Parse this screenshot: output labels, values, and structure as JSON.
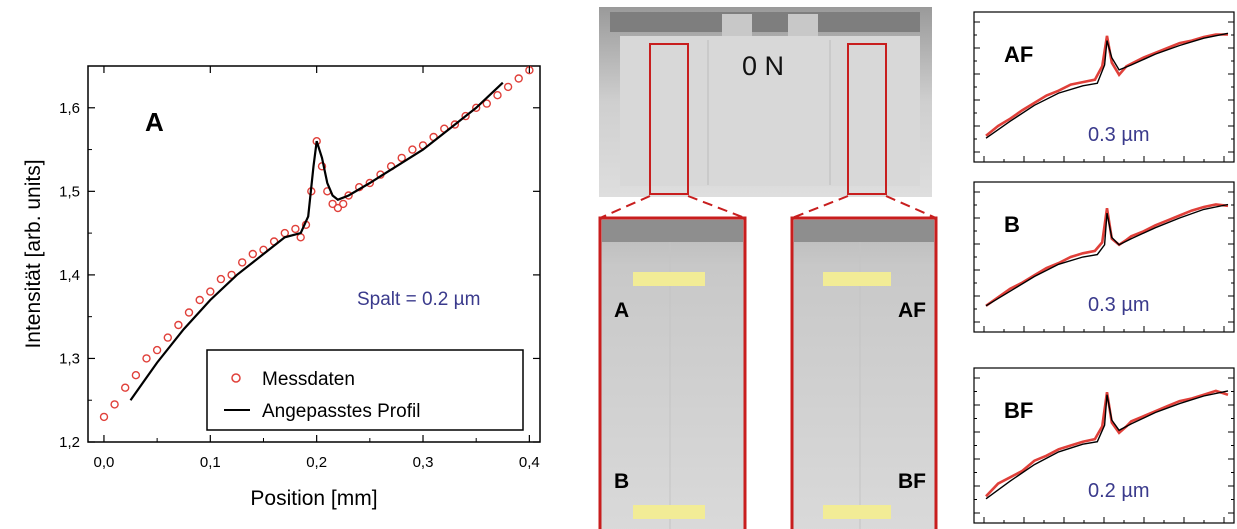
{
  "colors": {
    "measured": "#e0403a",
    "fit": "#000000",
    "annotation": "#3a3a8c",
    "highlight": "#c81e1e",
    "marker_bar": "#f2ec96"
  },
  "chart_data": [
    {
      "type": "scatter",
      "panel_label": "A",
      "xlabel": "Position [mm]",
      "ylabel": "Intensität [arb. units]",
      "xlim": [
        -0.015,
        0.41
      ],
      "ylim": [
        1.2,
        1.65
      ],
      "xticks": [
        0.0,
        0.1,
        0.2,
        0.3,
        0.4
      ],
      "xtick_labels": [
        "0,0",
        "0,1",
        "0,2",
        "0,3",
        "0,4"
      ],
      "yticks": [
        1.2,
        1.3,
        1.4,
        1.5,
        1.6
      ],
      "ytick_labels": [
        "1,2",
        "1,3",
        "1,4",
        "1,5",
        "1,6"
      ],
      "annotation": "Spalt = 0.2 µm",
      "legend": {
        "position": "bottom-right",
        "entries": [
          "Messdaten",
          "Angepasstes Profil"
        ]
      },
      "series": [
        {
          "name": "Messdaten",
          "style": "markers",
          "x": [
            0.0,
            0.01,
            0.02,
            0.03,
            0.04,
            0.05,
            0.06,
            0.07,
            0.08,
            0.09,
            0.1,
            0.11,
            0.12,
            0.13,
            0.14,
            0.15,
            0.16,
            0.17,
            0.18,
            0.185,
            0.19,
            0.195,
            0.2,
            0.205,
            0.21,
            0.215,
            0.22,
            0.225,
            0.23,
            0.24,
            0.25,
            0.26,
            0.27,
            0.28,
            0.29,
            0.3,
            0.31,
            0.32,
            0.33,
            0.34,
            0.35,
            0.36,
            0.37,
            0.38,
            0.39,
            0.4
          ],
          "y": [
            1.23,
            1.245,
            1.265,
            1.28,
            1.3,
            1.31,
            1.325,
            1.34,
            1.355,
            1.37,
            1.38,
            1.395,
            1.4,
            1.415,
            1.425,
            1.43,
            1.44,
            1.45,
            1.455,
            1.445,
            1.46,
            1.5,
            1.56,
            1.53,
            1.5,
            1.485,
            1.48,
            1.485,
            1.495,
            1.505,
            1.51,
            1.52,
            1.53,
            1.54,
            1.55,
            1.555,
            1.565,
            1.575,
            1.58,
            1.59,
            1.6,
            1.605,
            1.615,
            1.625,
            1.635,
            1.645
          ]
        },
        {
          "name": "Angepasstes Profil",
          "style": "line",
          "x": [
            0.025,
            0.05,
            0.075,
            0.1,
            0.125,
            0.15,
            0.17,
            0.185,
            0.192,
            0.197,
            0.2,
            0.205,
            0.21,
            0.215,
            0.22,
            0.23,
            0.25,
            0.275,
            0.3,
            0.325,
            0.35,
            0.375
          ],
          "y": [
            1.25,
            1.295,
            1.335,
            1.37,
            1.4,
            1.425,
            1.445,
            1.45,
            1.47,
            1.53,
            1.56,
            1.54,
            1.51,
            1.495,
            1.49,
            1.495,
            1.51,
            1.53,
            1.55,
            1.575,
            1.6,
            1.63
          ]
        }
      ]
    },
    {
      "type": "line",
      "panel_label": "AF",
      "annotation": "0.3 µm",
      "xlim": [
        0,
        1
      ],
      "ylim": [
        0,
        1
      ],
      "series": [
        {
          "style": "measured",
          "x": [
            0,
            0.05,
            0.1,
            0.15,
            0.2,
            0.25,
            0.3,
            0.35,
            0.4,
            0.45,
            0.48,
            0.5,
            0.52,
            0.55,
            0.58,
            0.6,
            0.65,
            0.7,
            0.75,
            0.8,
            0.85,
            0.9,
            0.95,
            1.0
          ],
          "y": [
            0.1,
            0.18,
            0.24,
            0.31,
            0.37,
            0.43,
            0.47,
            0.52,
            0.54,
            0.56,
            0.67,
            0.92,
            0.7,
            0.6,
            0.67,
            0.69,
            0.74,
            0.78,
            0.82,
            0.86,
            0.88,
            0.91,
            0.93,
            0.93
          ]
        },
        {
          "style": "fit",
          "x": [
            0.0,
            0.1,
            0.2,
            0.3,
            0.4,
            0.46,
            0.49,
            0.5,
            0.52,
            0.55,
            0.6,
            0.7,
            0.8,
            0.9,
            1.0
          ],
          "y": [
            0.08,
            0.22,
            0.35,
            0.45,
            0.51,
            0.53,
            0.68,
            0.88,
            0.74,
            0.64,
            0.68,
            0.77,
            0.84,
            0.9,
            0.94
          ]
        }
      ]
    },
    {
      "type": "line",
      "panel_label": "B",
      "annotation": "0.3 µm",
      "xlim": [
        0,
        1
      ],
      "ylim": [
        0,
        1
      ],
      "series": [
        {
          "style": "measured",
          "x": [
            0,
            0.05,
            0.1,
            0.15,
            0.2,
            0.25,
            0.3,
            0.35,
            0.4,
            0.45,
            0.48,
            0.5,
            0.52,
            0.55,
            0.58,
            0.6,
            0.65,
            0.7,
            0.75,
            0.8,
            0.85,
            0.9,
            0.95,
            1.0
          ],
          "y": [
            0.1,
            0.17,
            0.24,
            0.29,
            0.35,
            0.41,
            0.45,
            0.5,
            0.53,
            0.55,
            0.62,
            0.9,
            0.65,
            0.6,
            0.64,
            0.67,
            0.71,
            0.76,
            0.8,
            0.84,
            0.88,
            0.91,
            0.93,
            0.92
          ]
        },
        {
          "style": "fit",
          "x": [
            0.0,
            0.1,
            0.2,
            0.3,
            0.4,
            0.46,
            0.49,
            0.5,
            0.52,
            0.55,
            0.6,
            0.7,
            0.8,
            0.9,
            1.0
          ],
          "y": [
            0.1,
            0.22,
            0.34,
            0.44,
            0.5,
            0.52,
            0.6,
            0.86,
            0.66,
            0.6,
            0.65,
            0.74,
            0.82,
            0.89,
            0.93
          ]
        }
      ]
    },
    {
      "type": "line",
      "panel_label": "BF",
      "annotation": "0.2 µm",
      "xlim": [
        0,
        1
      ],
      "ylim": [
        0,
        1
      ],
      "series": [
        {
          "style": "measured",
          "x": [
            0,
            0.05,
            0.1,
            0.15,
            0.2,
            0.25,
            0.3,
            0.35,
            0.4,
            0.45,
            0.48,
            0.5,
            0.52,
            0.55,
            0.58,
            0.6,
            0.65,
            0.7,
            0.75,
            0.8,
            0.85,
            0.9,
            0.95,
            1.0
          ],
          "y": [
            0.1,
            0.2,
            0.25,
            0.3,
            0.38,
            0.42,
            0.47,
            0.5,
            0.53,
            0.55,
            0.65,
            0.92,
            0.68,
            0.6,
            0.65,
            0.69,
            0.73,
            0.77,
            0.81,
            0.85,
            0.87,
            0.9,
            0.93,
            0.9
          ]
        },
        {
          "style": "fit",
          "x": [
            0.0,
            0.1,
            0.2,
            0.3,
            0.4,
            0.46,
            0.49,
            0.5,
            0.52,
            0.55,
            0.6,
            0.7,
            0.8,
            0.9,
            1.0
          ],
          "y": [
            0.08,
            0.22,
            0.35,
            0.45,
            0.51,
            0.53,
            0.66,
            0.9,
            0.7,
            0.62,
            0.67,
            0.76,
            0.83,
            0.89,
            0.93
          ]
        }
      ]
    }
  ],
  "micrograph": {
    "load_label": "0 N",
    "left_crop_top_label": "A",
    "left_crop_bottom_label": "B",
    "right_crop_top_label": "AF",
    "right_crop_bottom_label": "BF"
  }
}
